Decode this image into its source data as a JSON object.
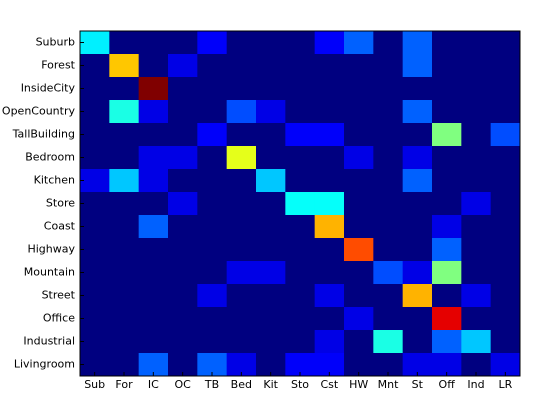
{
  "chart_data": {
    "type": "heatmap",
    "colormap": "jet",
    "zlim": [
      0,
      1
    ],
    "x": [
      "Sub",
      "For",
      "IC",
      "OC",
      "TB",
      "Bed",
      "Kit",
      "Sto",
      "Cst",
      "HW",
      "Mnt",
      "St",
      "Off",
      "Ind",
      "LR"
    ],
    "y": [
      "Suburb",
      "Forest",
      "InsideCity",
      "OpenCountry",
      "TallBuilding",
      "Bedroom",
      "Kitchen",
      "Store",
      "Coast",
      "Highway",
      "Mountain",
      "Street",
      "Office",
      "Industrial",
      "Livingroom"
    ],
    "z": [
      [
        0.36,
        0,
        0,
        0,
        0.12,
        0,
        0,
        0,
        0.12,
        0.22,
        0,
        0.22,
        0,
        0,
        0
      ],
      [
        0,
        0.68,
        0,
        0.1,
        0,
        0,
        0,
        0,
        0,
        0,
        0,
        0.22,
        0,
        0,
        0
      ],
      [
        0,
        0,
        1,
        0,
        0,
        0,
        0,
        0,
        0,
        0,
        0,
        0,
        0,
        0,
        0
      ],
      [
        0,
        0.4,
        0.1,
        0,
        0,
        0.2,
        0.1,
        0,
        0,
        0,
        0,
        0.22,
        0,
        0,
        0
      ],
      [
        0,
        0,
        0,
        0,
        0.12,
        0,
        0,
        0.12,
        0.12,
        0,
        0,
        0,
        0.5,
        0,
        0.2
      ],
      [
        0,
        0,
        0.1,
        0.1,
        0,
        0.6,
        0,
        0,
        0,
        0.1,
        0,
        0.1,
        0,
        0,
        0
      ],
      [
        0.1,
        0.32,
        0.1,
        0,
        0,
        0,
        0.32,
        0,
        0,
        0,
        0,
        0.22,
        0,
        0,
        0
      ],
      [
        0,
        0,
        0,
        0.1,
        0,
        0,
        0,
        0.38,
        0.38,
        0,
        0,
        0,
        0,
        0.1,
        0
      ],
      [
        0,
        0,
        0.22,
        0,
        0,
        0,
        0,
        0,
        0.7,
        0,
        0,
        0,
        0.1,
        0,
        0
      ],
      [
        0,
        0,
        0,
        0,
        0,
        0,
        0,
        0,
        0,
        0.8,
        0,
        0,
        0.22,
        0,
        0
      ],
      [
        0,
        0,
        0,
        0,
        0,
        0.1,
        0.1,
        0,
        0,
        0,
        0.2,
        0.1,
        0.5,
        0,
        0
      ],
      [
        0,
        0,
        0,
        0,
        0.1,
        0,
        0,
        0,
        0.1,
        0,
        0,
        0.7,
        0,
        0.1,
        0
      ],
      [
        0,
        0,
        0,
        0,
        0,
        0,
        0,
        0,
        0,
        0.1,
        0,
        0,
        0.9,
        0,
        0
      ],
      [
        0,
        0,
        0,
        0,
        0,
        0,
        0,
        0,
        0.1,
        0,
        0.4,
        0,
        0.22,
        0.32,
        0
      ],
      [
        0,
        0,
        0.22,
        0,
        0.22,
        0.1,
        0,
        0.12,
        0.12,
        0,
        0,
        0.1,
        0.1,
        0,
        0.1
      ]
    ]
  }
}
